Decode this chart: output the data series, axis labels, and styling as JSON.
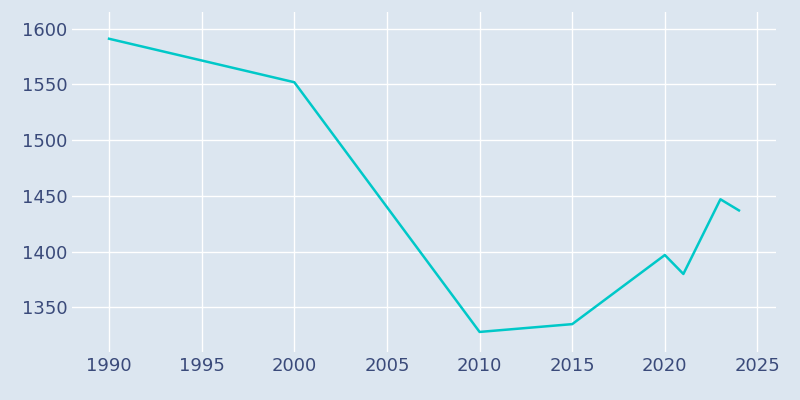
{
  "years": [
    1990,
    2000,
    2010,
    2015,
    2020,
    2021,
    2023,
    2024
  ],
  "population": [
    1591,
    1552,
    1328,
    1335,
    1397,
    1380,
    1447,
    1437
  ],
  "line_color": "#00C8C8",
  "bg_color": "#dce6f0",
  "grid_color": "#ffffff",
  "text_color": "#3a4a7a",
  "xlim": [
    1988,
    2026
  ],
  "ylim": [
    1310,
    1615
  ],
  "xticks": [
    1990,
    1995,
    2000,
    2005,
    2010,
    2015,
    2020,
    2025
  ],
  "yticks": [
    1350,
    1400,
    1450,
    1500,
    1550,
    1600
  ],
  "linewidth": 1.8,
  "tick_fontsize": 13
}
